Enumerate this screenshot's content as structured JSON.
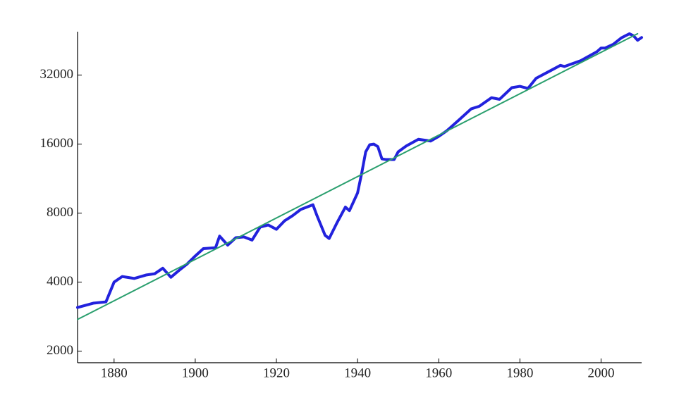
{
  "chart_data": {
    "type": "line",
    "yscale": "log",
    "xlim": [
      1871,
      2010
    ],
    "xticks": [
      1880,
      1900,
      1920,
      1940,
      1960,
      1980,
      2000
    ],
    "ylim": [
      1780,
      49500
    ],
    "yticks": [
      2000,
      4000,
      8000,
      16000,
      32000
    ],
    "series": [
      {
        "color": "#2222dd",
        "x": [
          1871,
          1875,
          1878,
          1880,
          1882,
          1885,
          1888,
          1890,
          1892,
          1894,
          1896,
          1898,
          1900,
          1902,
          1905,
          1906,
          1908,
          1910,
          1912,
          1914,
          1916,
          1918,
          1920,
          1922,
          1924,
          1926,
          1929,
          1930,
          1932,
          1933,
          1935,
          1937,
          1938,
          1940,
          1941,
          1942,
          1943,
          1944,
          1945,
          1946,
          1947,
          1949,
          1950,
          1952,
          1955,
          1958,
          1960,
          1962,
          1965,
          1968,
          1970,
          1973,
          1975,
          1978,
          1980,
          1982,
          1984,
          1988,
          1990,
          1991,
          1995,
          1999,
          2000,
          2001,
          2003,
          2005,
          2007,
          2008,
          2009,
          2010
        ],
        "values": [
          3100,
          3240,
          3280,
          4000,
          4230,
          4150,
          4300,
          4350,
          4600,
          4200,
          4500,
          4800,
          5200,
          5600,
          5650,
          6350,
          5800,
          6250,
          6300,
          6100,
          6950,
          7100,
          6800,
          7400,
          7800,
          8300,
          8700,
          7800,
          6400,
          6200,
          7300,
          8500,
          8200,
          9800,
          11900,
          14800,
          15900,
          16000,
          15600,
          13800,
          13700,
          13700,
          14800,
          15700,
          16800,
          16500,
          17300,
          18300,
          20400,
          22800,
          23400,
          25500,
          25100,
          28200,
          28600,
          28000,
          31000,
          33800,
          35300,
          34900,
          37000,
          40500,
          42000,
          42000,
          43600,
          46500,
          48500,
          47500,
          45400,
          46700
        ],
        "width": 4
      },
      {
        "color": "#2a9f6e",
        "x": [
          1871,
          2009
        ],
        "values": [
          2750,
          48500
        ],
        "width": 2
      }
    ]
  }
}
